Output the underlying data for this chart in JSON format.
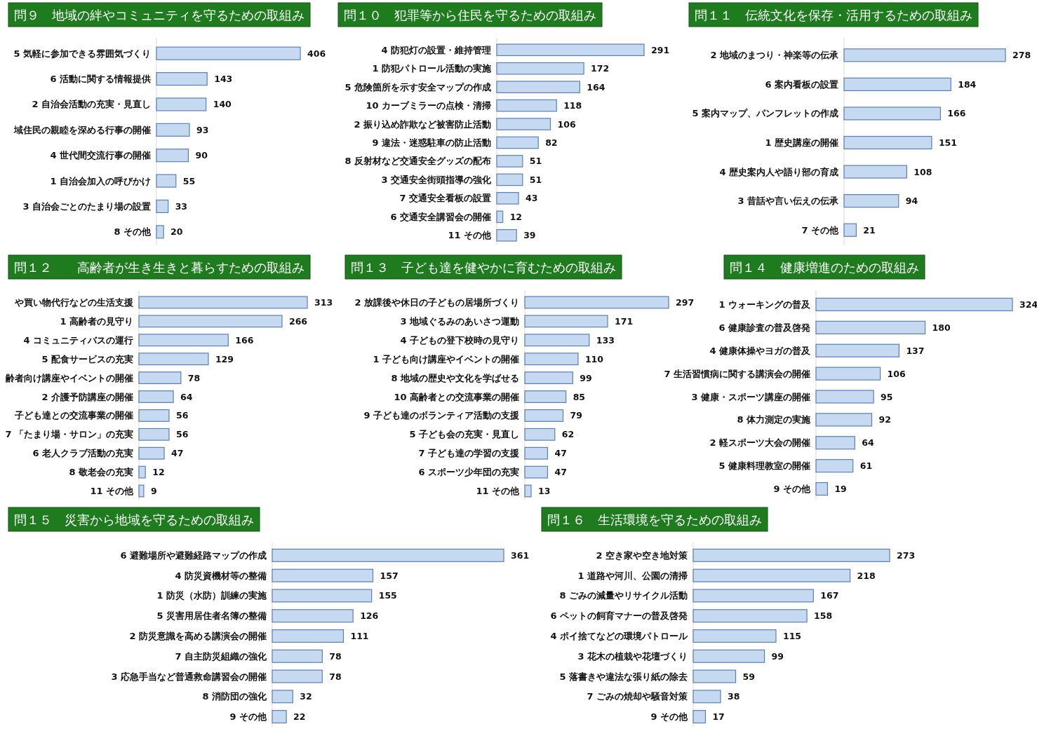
{
  "chart_data": [
    {
      "type": "bar",
      "orientation": "horizontal",
      "data_labels": true,
      "color": "#c5d9f1",
      "title": "問９　地域の絆やコミュニティを守るための取組み",
      "categories": [
        "5 気軽に参加できる雰囲気づくり",
        "6 活動に関する情報提供",
        "2 自治会活動の充実・見直し",
        "域住民の親睦を深める行事の開催",
        "4 世代間交流行事の開催",
        "1 自治会加入の呼びかけ",
        "3 自治会ごとのたまり場の設置",
        "8 その他"
      ],
      "values": [
        406,
        143,
        140,
        93,
        90,
        55,
        33,
        20
      ]
    },
    {
      "type": "bar",
      "orientation": "horizontal",
      "data_labels": true,
      "color": "#c5d9f1",
      "title": "問１０　犯罪等から住民を守るための取組み",
      "categories": [
        "4 防犯灯の設置・維持管理",
        "1 防犯パトロール活動の実施",
        "5 危険箇所を示す安全マップの作成",
        "10 カーブミラーの点検・清掃",
        "2 振り込め詐欺など被害防止活動",
        "9 違法・迷惑駐車の防止活動",
        "8 反射材など交通安全グッズの配布",
        "3 交通安全街頭指導の強化",
        "7 交通安全看板の設置",
        "6 交通安全講習会の開催",
        "11 その他"
      ],
      "values": [
        291,
        172,
        164,
        118,
        106,
        82,
        51,
        51,
        43,
        12,
        39
      ]
    },
    {
      "type": "bar",
      "orientation": "horizontal",
      "data_labels": true,
      "color": "#c5d9f1",
      "title": "問１１　伝統文化を保存・活用するための取組み",
      "categories": [
        "2 地域のまつり・神楽等の伝承",
        "6 案内看板の設置",
        "5 案内マップ、パンフレットの作成",
        "1 歴史講座の開催",
        "4 歴史案内人や語り部の育成",
        "3 昔話や言い伝えの伝承",
        "7 その他"
      ],
      "values": [
        278,
        184,
        166,
        151,
        108,
        94,
        21
      ]
    },
    {
      "type": "bar",
      "orientation": "horizontal",
      "data_labels": true,
      "color": "#c5d9f1",
      "title": "問１２　　高齢者が生き生きと暮らすための取組み",
      "categories": [
        "や買い物代行などの生活支援",
        "1 高齢者の見守り",
        "4 コミュニティバスの運行",
        "5 配食サービスの充実",
        "齢者向け講座やイベントの開催",
        "2 介護予防講座の開催",
        "子ども達との交流事業の開催",
        "7 「たまり場・サロン」の充実",
        "6 老人クラブ活動の充実",
        "8 敬老会の充実",
        "11 その他"
      ],
      "values": [
        313,
        266,
        166,
        129,
        78,
        64,
        56,
        56,
        47,
        12,
        9
      ]
    },
    {
      "type": "bar",
      "orientation": "horizontal",
      "data_labels": true,
      "color": "#c5d9f1",
      "title": "問１３　子ども達を健やかに育むための取組み",
      "categories": [
        "2 放課後や休日の子どもの居場所づくり",
        "3 地域ぐるみのあいさつ運動",
        "4 子どもの登下校時の見守り",
        "1 子ども向け講座やイベントの開催",
        "8 地域の歴史や文化を学ばせる",
        "10 高齢者との交流事業の開催",
        "9 子ども達のボランティア活動の支援",
        "5 子ども会の充実・見直し",
        "7 子ども達の学習の支援",
        "6 スポーツ少年団の充実",
        "11 その他"
      ],
      "values": [
        297,
        171,
        133,
        110,
        99,
        85,
        79,
        62,
        47,
        47,
        13
      ]
    },
    {
      "type": "bar",
      "orientation": "horizontal",
      "data_labels": true,
      "color": "#c5d9f1",
      "title": "問１４　健康増進のための取組み",
      "categories": [
        "1 ウォーキングの普及",
        "6 健康診査の普及啓発",
        "4 健康体操やヨガの普及",
        "7 生活習慣病に関する講演会の開催",
        "3 健康・スポーツ講座の開催",
        "8 体力測定の実施",
        "2 軽スポーツ大会の開催",
        "5 健康料理教室の開催",
        "9 その他"
      ],
      "values": [
        324,
        180,
        137,
        106,
        95,
        92,
        64,
        61,
        19
      ]
    },
    {
      "type": "bar",
      "orientation": "horizontal",
      "data_labels": true,
      "color": "#c5d9f1",
      "title": "問１５　災害から地域を守るための取組み",
      "categories": [
        "6 避難場所や避難経路マップの作成",
        "4 防災資機材等の整備",
        "1 防災（水防）訓練の実施",
        "5 災害用居住者名簿の整備",
        "2 防災意識を高める講演会の開催",
        "7 自主防災組織の強化",
        "3 応急手当など普通救命講習会の開催",
        "8 消防団の強化",
        "9 その他"
      ],
      "values": [
        361,
        157,
        155,
        126,
        111,
        78,
        78,
        32,
        22
      ]
    },
    {
      "type": "bar",
      "orientation": "horizontal",
      "data_labels": true,
      "color": "#c5d9f1",
      "title": "問１６　生活環境を守るための取組み",
      "categories": [
        "2 空き家や空き地対策",
        "1 道路や河川、公園の清掃",
        "8 ごみの減量やリサイクル活動",
        "6 ペットの飼育マナーの普及啓発",
        "4 ポイ捨てなどの環境パトロール",
        "3 花木の植栽や花壇づくり",
        "5 落書きや違法な張り紙の除去",
        "7 ごみの焼却や騒音対策",
        "9 その他"
      ],
      "values": [
        273,
        218,
        167,
        158,
        115,
        99,
        59,
        38,
        17
      ]
    }
  ]
}
